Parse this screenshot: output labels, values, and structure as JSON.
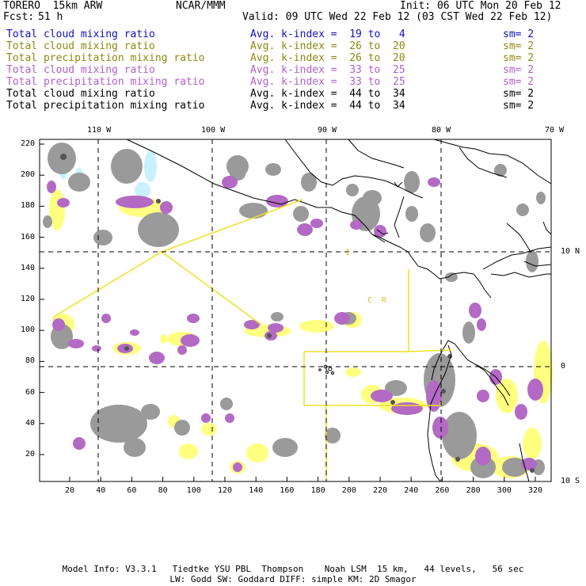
{
  "header": {
    "model": "TORERO  15km ARW",
    "org": "NCAR/MMM",
    "init": "Init: 06 UTC Mon 20 Feb 12",
    "fcst_label": "Fcst:",
    "fcst_value": "51 h",
    "valid": "Valid: 09 UTC Wed 22 Feb 12 (03 CST Wed 22 Feb 12)"
  },
  "legend": [
    {
      "field": "Total cloud mixing ratio",
      "index": "Avg. k-index =  19 to   4",
      "sm": "sm= 2",
      "color": "#1010c8"
    },
    {
      "field": "Total cloud mixing ratio",
      "index": "Avg. k-index =  26 to  20",
      "sm": "sm= 2",
      "color": "#8a8a10"
    },
    {
      "field": "Total precipitation mixing ratio",
      "index": "Avg. k-index =  26 to  20",
      "sm": "sm= 2",
      "color": "#8a8a10"
    },
    {
      "field": "Total cloud mixing ratio",
      "index": "Avg. k-index =  33 to  25",
      "sm": "sm= 2",
      "color": "#b060c8"
    },
    {
      "field": "Total precipitation mixing ratio",
      "index": "Avg. k-index =  33 to  25",
      "sm": "sm= 2",
      "color": "#b060c8"
    },
    {
      "field": "Total cloud mixing ratio",
      "index": "Avg. k-index =  44 to  34",
      "sm": "sm= 2",
      "color": "#000000"
    },
    {
      "field": "Total precipitation mixing ratio",
      "index": "Avg. k-index =  44 to  34",
      "sm": "sm= 2",
      "color": "#000000"
    }
  ],
  "map": {
    "lon_labels": [
      "110 W",
      "100 W",
      "90 W",
      "80 W",
      "70 W"
    ],
    "lat_labels": [
      "10 N",
      "0",
      "10 S"
    ],
    "y_ticks": [
      "220",
      "200",
      "180",
      "160",
      "140",
      "120",
      "100",
      "80",
      "60",
      "40",
      "20"
    ],
    "x_ticks": [
      "20",
      "40",
      "60",
      "80",
      "100",
      "120",
      "140",
      "160",
      "180",
      "200",
      "220",
      "240",
      "260",
      "280",
      "300",
      "320"
    ],
    "region_labels": [
      "I",
      "C",
      "R"
    ]
  },
  "footer": {
    "line1": "Model Info: V3.3.1   Tiedtke YSU PBL  Thompson    Noah LSM  15 km,   44 levels,   56 sec",
    "line2": "LW: Godd SW: Goddard DIFF: simple KM: 2D Smagor"
  },
  "colors": {
    "gray": "#9a9a9a",
    "dark": "#555555",
    "violet": "#b36ac4",
    "yellow": "#ffff80",
    "cyan": "#c8f0ff",
    "region": "#f0e020"
  }
}
